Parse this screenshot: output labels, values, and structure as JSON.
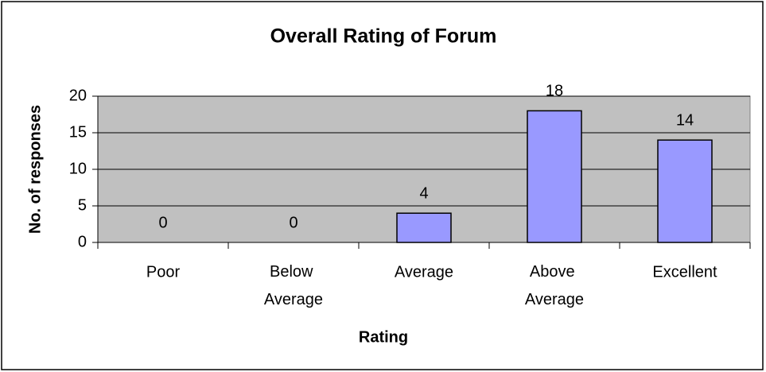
{
  "chart_data": {
    "type": "bar",
    "title": "Overall Rating of Forum",
    "x_label": "Rating",
    "y_label": "No. of responses",
    "categories": [
      "Poor",
      "Below Average",
      "Average",
      "Above Average",
      "Excellent"
    ],
    "values": [
      0,
      0,
      4,
      18,
      14
    ],
    "color": "#9999ff",
    "ylim": [
      0,
      20
    ],
    "yticks": [
      0,
      5,
      10,
      15,
      20
    ],
    "grid": true
  }
}
